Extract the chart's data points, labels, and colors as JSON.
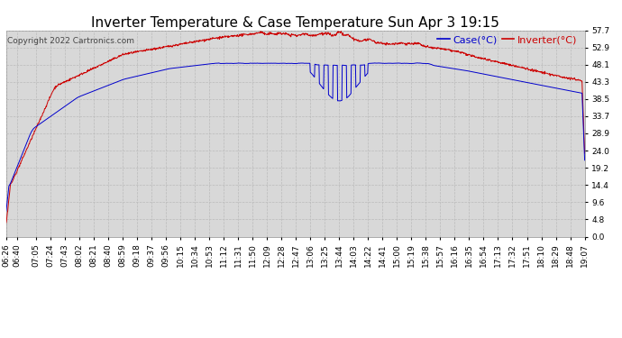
{
  "title": "Inverter Temperature & Case Temperature Sun Apr 3 19:15",
  "copyright": "Copyright 2022 Cartronics.com",
  "legend_case": "Case(°C)",
  "legend_inverter": "Inverter(°C)",
  "yticks": [
    0.0,
    4.8,
    9.6,
    14.4,
    19.2,
    24.0,
    28.9,
    33.7,
    38.5,
    43.3,
    48.1,
    52.9,
    57.7
  ],
  "ymin": 0.0,
  "ymax": 57.7,
  "bg_color": "#ffffff",
  "plot_bg_color": "#d8d8d8",
  "grid_color": "#bbbbbb",
  "case_color": "#0000cc",
  "inverter_color": "#cc0000",
  "title_fontsize": 11,
  "tick_fontsize": 6.5,
  "copyright_fontsize": 6.5,
  "legend_fontsize": 8,
  "xtick_labels": [
    "06:26",
    "06:40",
    "07:05",
    "07:24",
    "07:43",
    "08:02",
    "08:21",
    "08:40",
    "08:59",
    "09:18",
    "09:37",
    "09:56",
    "10:15",
    "10:34",
    "10:53",
    "11:12",
    "11:31",
    "11:50",
    "12:09",
    "12:28",
    "12:47",
    "13:06",
    "13:25",
    "13:44",
    "14:03",
    "14:22",
    "14:41",
    "15:00",
    "15:19",
    "15:38",
    "15:57",
    "16:16",
    "16:35",
    "16:54",
    "17:13",
    "17:32",
    "17:51",
    "18:10",
    "18:29",
    "18:48",
    "19:07"
  ]
}
